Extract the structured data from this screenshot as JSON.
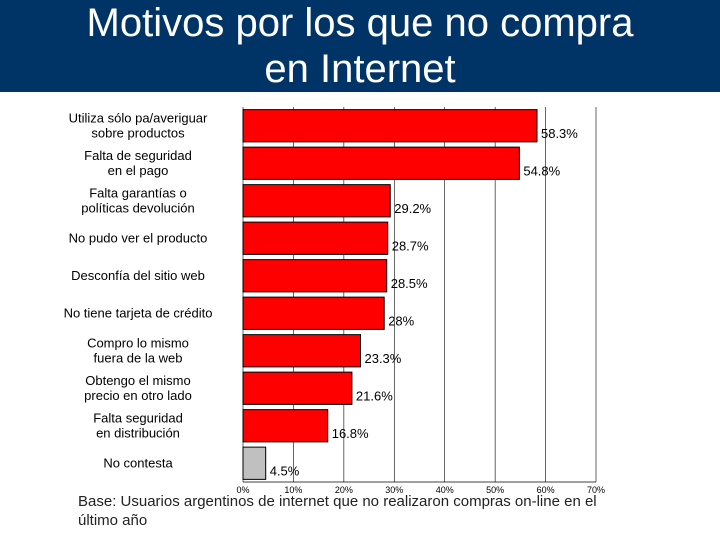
{
  "slide": {
    "title_line1": "Motivos por los que no compra",
    "title_line2": "en Internet",
    "note": "Base: Usuarios argentinos de internet que no realizaron compras on-line en el último año"
  },
  "colors": {
    "title_bg": "#003366",
    "bar_fill": "#ff0000",
    "bar_fill_last": "#c0c0c0",
    "bar_stroke": "#000000",
    "grid": "#000000"
  },
  "chart_data": {
    "type": "bar",
    "orientation": "horizontal",
    "categories": [
      [
        "Utiliza sólo pa/averiguar",
        "sobre productos"
      ],
      [
        "Falta de seguridad",
        "en el pago"
      ],
      [
        "Falta garantías o",
        "políticas devolución"
      ],
      [
        "No pudo ver el producto"
      ],
      [
        "Desconfía del sitio web"
      ],
      [
        "No tiene tarjeta de crédito"
      ],
      [
        "Compro lo mismo",
        "fuera de la web"
      ],
      [
        "Obtengo el mismo",
        "precio en otro lado"
      ],
      [
        "Falta seguridad",
        "en distribución"
      ],
      [
        "No contesta"
      ]
    ],
    "values": [
      58.3,
      54.8,
      29.2,
      28.7,
      28.5,
      28,
      23.3,
      21.6,
      16.8,
      4.5
    ],
    "value_labels": [
      "58.3%",
      "54.8%",
      "29.2%",
      "28.7%",
      "28.5%",
      "28%",
      "23.3%",
      "21.6%",
      "16.8%",
      "4.5%"
    ],
    "xlim": [
      0,
      70
    ],
    "xticks": [
      "0%",
      "10%",
      "20%",
      "30%",
      "40%",
      "50%",
      "60%",
      "70%"
    ],
    "grid": true,
    "legend": "none"
  }
}
